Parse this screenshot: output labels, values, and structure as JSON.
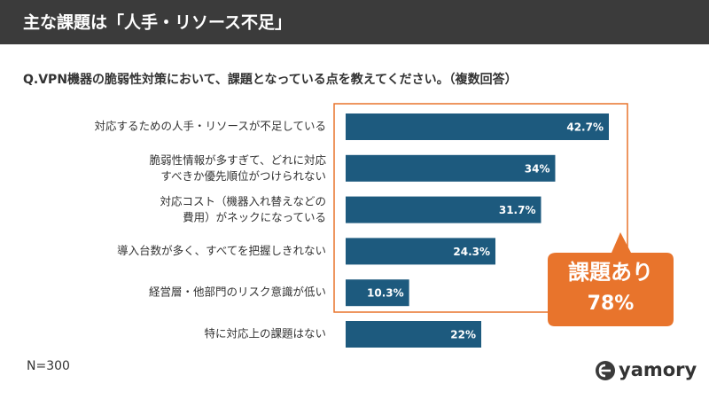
{
  "chart_data": {
    "type": "barh",
    "title": "主な課題は「人手・リソース不足」",
    "subtitle": "Q.VPN機器の脆弱性対策において、課題となっている点を教えてください。（複数回答）",
    "categories": [
      "対応するための人手・リソースが不足している",
      "脆弱性情報が多すぎて、どれに対応\nすべきか優先順位がつけられない",
      "対応コスト（機器入れ替えなどの\n費用）がネックになっている",
      "導入台数が多く、すべてを把握しきれない",
      "経営層・他部門のリスク意識が低い",
      "特に対応上の課題はない"
    ],
    "values": [
      42.7,
      34,
      31.7,
      24.3,
      10.3,
      22
    ],
    "value_labels": [
      "42.7%",
      "34%",
      "31.7%",
      "24.3%",
      "10.3%",
      "22%"
    ],
    "color": "#1d5a7e",
    "callout": {
      "title": "課題あり",
      "text": "78%"
    },
    "note": "N=300",
    "brand": "yamory"
  }
}
